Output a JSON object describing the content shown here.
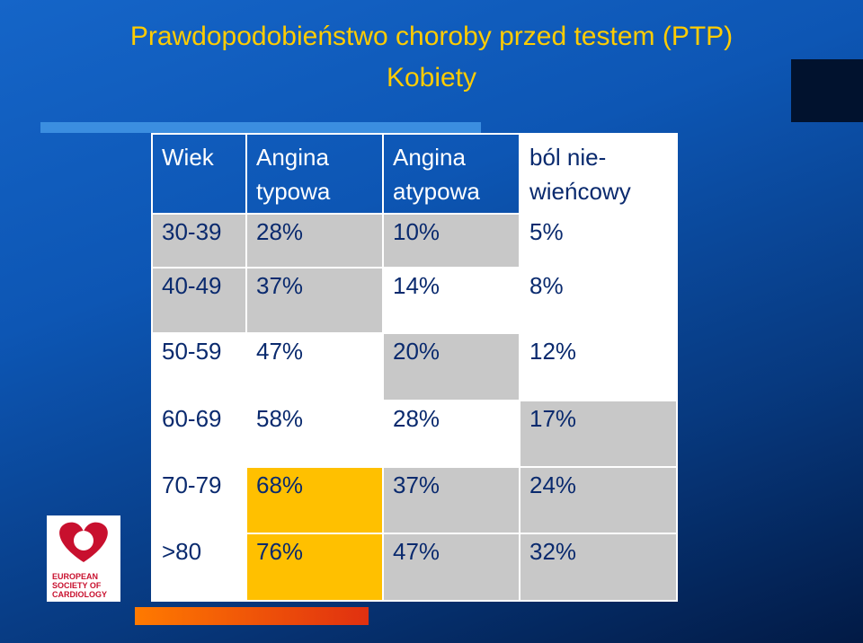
{
  "header": {
    "title": "Prawdopodobieństwo choroby przed testem (PTP)",
    "subtitle": "Kobiety"
  },
  "table": {
    "columns": [
      "Wiek",
      "Angina typowa",
      "Angina atypowa",
      "ból nie-wieńcowy"
    ],
    "rows": [
      [
        "30-39",
        "28%",
        "10%",
        "5%"
      ],
      [
        "40-49",
        "37%",
        "14%",
        "8%"
      ],
      [
        "50-59",
        "47%",
        "20%",
        "12%"
      ],
      [
        "60-69",
        "58%",
        "28%",
        "17%"
      ],
      [
        "70-79",
        "68%",
        "37%",
        "24%"
      ],
      [
        ">80",
        "76%",
        "47%",
        "32%"
      ]
    ]
  },
  "logo": {
    "lines": [
      "EUROPEAN",
      "SOCIETY OF",
      "CARDIOLOGY"
    ]
  }
}
